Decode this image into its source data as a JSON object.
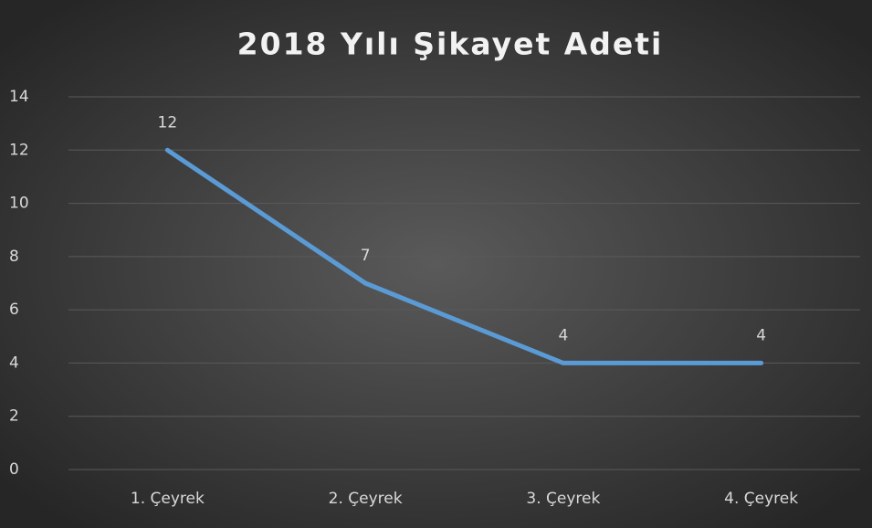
{
  "chart_data": {
    "type": "line",
    "title": "2018 Yılı Şikayet Adeti",
    "categories": [
      "1. Çeyrek",
      "2. Çeyrek",
      "3. Çeyrek",
      "4. Çeyrek"
    ],
    "series": [
      {
        "color": "#5b9bd5",
        "values": [
          12,
          7,
          4,
          4
        ]
      }
    ],
    "ylim": [
      0,
      14
    ],
    "yticks": [
      0,
      2,
      4,
      6,
      8,
      10,
      12,
      14
    ],
    "grid": true
  }
}
